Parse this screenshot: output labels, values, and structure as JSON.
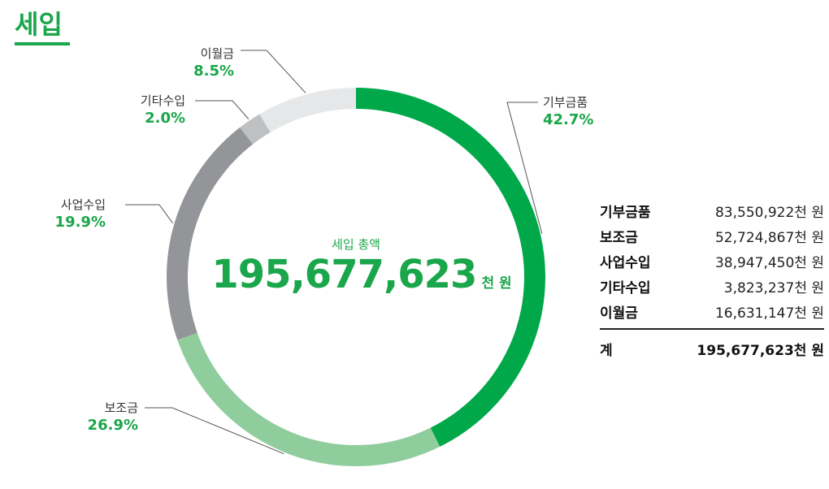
{
  "title": "세입",
  "center": {
    "label": "세입 총액",
    "total": "195,677,623",
    "unit": "천 원"
  },
  "colors": {
    "accent": "#1aa64a",
    "slice_colors": [
      "#00a84a",
      "#8fcd9c",
      "#949598",
      "#bfc0c2",
      "#e6e7e8"
    ]
  },
  "chart_data": {
    "type": "pie",
    "title": "세입",
    "categories": [
      "기부금품",
      "보조금",
      "사업수입",
      "기타수입",
      "이월금"
    ],
    "values": [
      42.7,
      26.9,
      19.9,
      2.0,
      8.5
    ],
    "labels": [
      "42.7%",
      "26.9%",
      "19.9%",
      "2.0%",
      "8.5%"
    ],
    "amounts": [
      "83,550,922천 원",
      "52,724,867천 원",
      "38,947,450천 원",
      "3,823,237천 원",
      "16,631,147천 원"
    ],
    "donut": true
  },
  "summary": {
    "rows": [
      {
        "label": "기부금품",
        "amount": "83,550,922천 원"
      },
      {
        "label": "보조금",
        "amount": "52,724,867천 원"
      },
      {
        "label": "사업수입",
        "amount": "38,947,450천 원"
      },
      {
        "label": "기타수입",
        "amount": "3,823,237천 원"
      },
      {
        "label": "이월금",
        "amount": "16,631,147천 원"
      }
    ],
    "total_label": "계",
    "total_amount": "195,677,623천 원"
  }
}
